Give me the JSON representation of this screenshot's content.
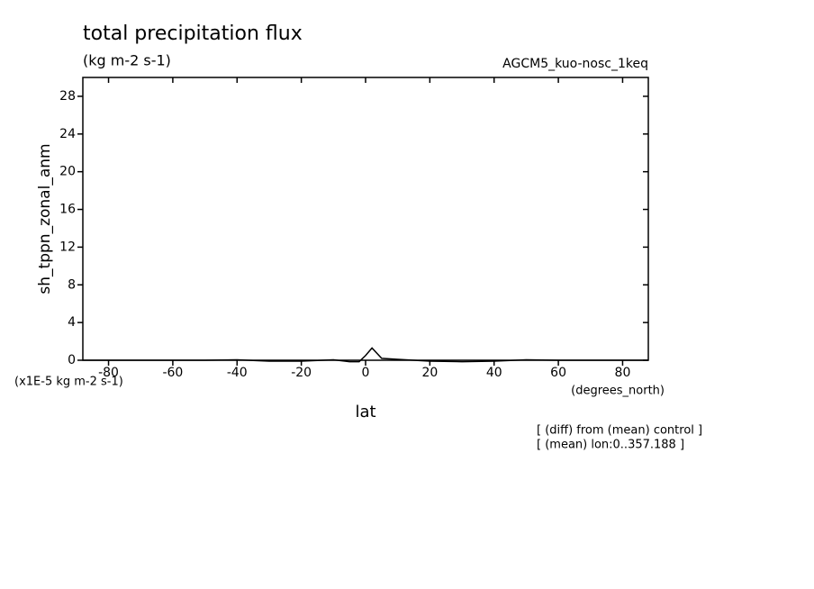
{
  "chart_data": {
    "type": "line",
    "title": "total precipitation flux",
    "subtitle": "(kg m-2 s-1)",
    "dataset": "AGCM5_kuo-nosc_1keq",
    "y_label": "sh_tppn_zonal_anm",
    "x_label": "lat",
    "x_unit": "(degrees_north)",
    "y_scale_note": "(x1E-5 kg m-2 s-1)",
    "notes": [
      "[ (diff) from (mean) control ]",
      "[ (mean) lon:0..357.188 ]"
    ],
    "x": [
      -88,
      -80,
      -70,
      -60,
      -50,
      -40,
      -30,
      -20,
      -10,
      -5,
      -2,
      0,
      2,
      5,
      10,
      20,
      30,
      40,
      50,
      60,
      70,
      80,
      88
    ],
    "series": [
      {
        "name": "sh_tppn_zonal_anm",
        "color": "#000000",
        "values": [
          0,
          0,
          0,
          0,
          0,
          0.05,
          -0.1,
          -0.1,
          0.05,
          -0.15,
          -0.15,
          0.5,
          1.3,
          0.2,
          0.1,
          -0.1,
          -0.15,
          -0.1,
          0.05,
          0,
          0,
          0,
          0
        ]
      }
    ],
    "xlim": [
      -88,
      88
    ],
    "ylim": [
      0,
      30
    ],
    "xticks": [
      -80,
      -60,
      -40,
      -20,
      0,
      20,
      40,
      60,
      80
    ],
    "yticks": [
      0,
      4,
      8,
      12,
      16,
      20,
      24,
      28
    ],
    "grid": false
  }
}
